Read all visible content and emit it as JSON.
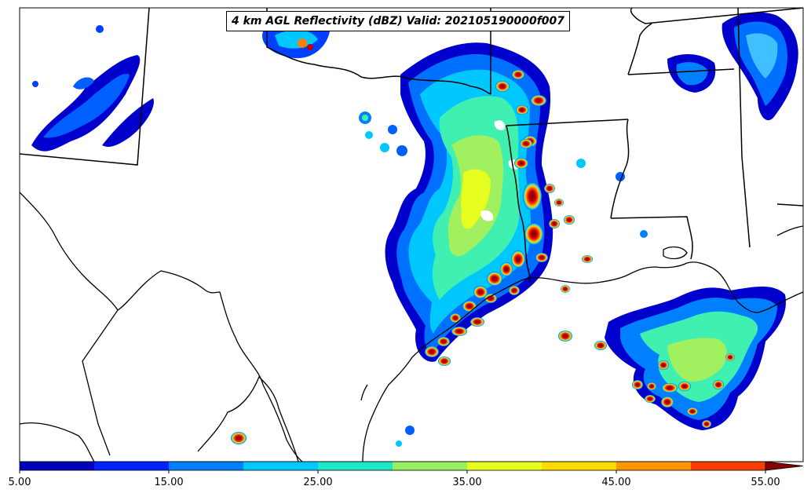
{
  "title": "4 km AGL Reflectivity (dBZ) Valid: 202105190000f007",
  "colorbar": {
    "ticks": [
      "5.00",
      "15.00",
      "25.00",
      "35.00",
      "45.00",
      "55.00"
    ],
    "colors": [
      "#0000bb",
      "#0022ff",
      "#0080ff",
      "#00c8ff",
      "#1ee6c8",
      "#96f064",
      "#e6ff1e",
      "#ffdc00",
      "#ff9600",
      "#ff3c00",
      "#b40000"
    ],
    "extend_color": "#8a0000"
  },
  "colors": {
    "border": "#000000",
    "frame": "#000000",
    "background": "#ffffff"
  }
}
